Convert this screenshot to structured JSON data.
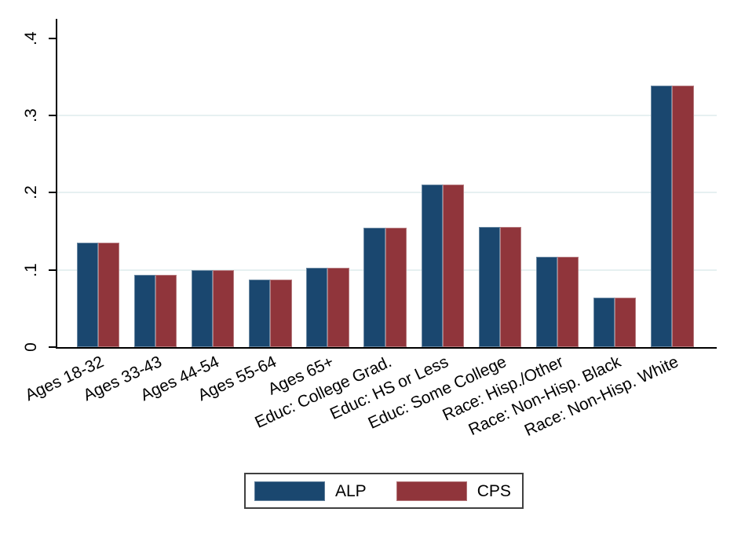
{
  "chart_data": {
    "type": "bar",
    "title": "",
    "xlabel": "",
    "ylabel": "",
    "categories": [
      "Ages 18-32",
      "Ages 33-43",
      "Ages 44-54",
      "Ages 55-64",
      "Ages 65+",
      "Educ: College Grad.",
      "Educ: HS or Less",
      "Educ: Some College",
      "Race: Hisp./Other",
      "Race: Non-Hisp. Black",
      "Race: Non-Hisp. White"
    ],
    "series": [
      {
        "name": "ALP",
        "color": "#1a476f",
        "values": [
          0.135,
          0.094,
          0.1,
          0.087,
          0.103,
          0.155,
          0.21,
          0.156,
          0.117,
          0.064,
          0.339
        ]
      },
      {
        "name": "CPS",
        "color": "#90353b",
        "values": [
          0.135,
          0.094,
          0.1,
          0.087,
          0.103,
          0.155,
          0.21,
          0.156,
          0.117,
          0.064,
          0.339
        ]
      }
    ],
    "ylim": [
      0,
      0.425
    ],
    "yticks": [
      0,
      0.1,
      0.2,
      0.3,
      0.4
    ],
    "ytick_labels": [
      "0",
      ".1",
      ".2",
      ".3",
      ".4"
    ],
    "gridline_values": [
      0.1,
      0.2,
      0.3
    ],
    "grid": true,
    "legend_position": "bottom-center"
  },
  "legend": {
    "items": [
      {
        "label": "ALP",
        "color": "#1a476f"
      },
      {
        "label": "CPS",
        "color": "#90353b"
      }
    ]
  },
  "styles": {
    "background": "#ffffff",
    "axis_color": "#000000",
    "gridline_color": "#e6f0f1",
    "legend_border_color": "#404040",
    "text_color": "#000000"
  }
}
